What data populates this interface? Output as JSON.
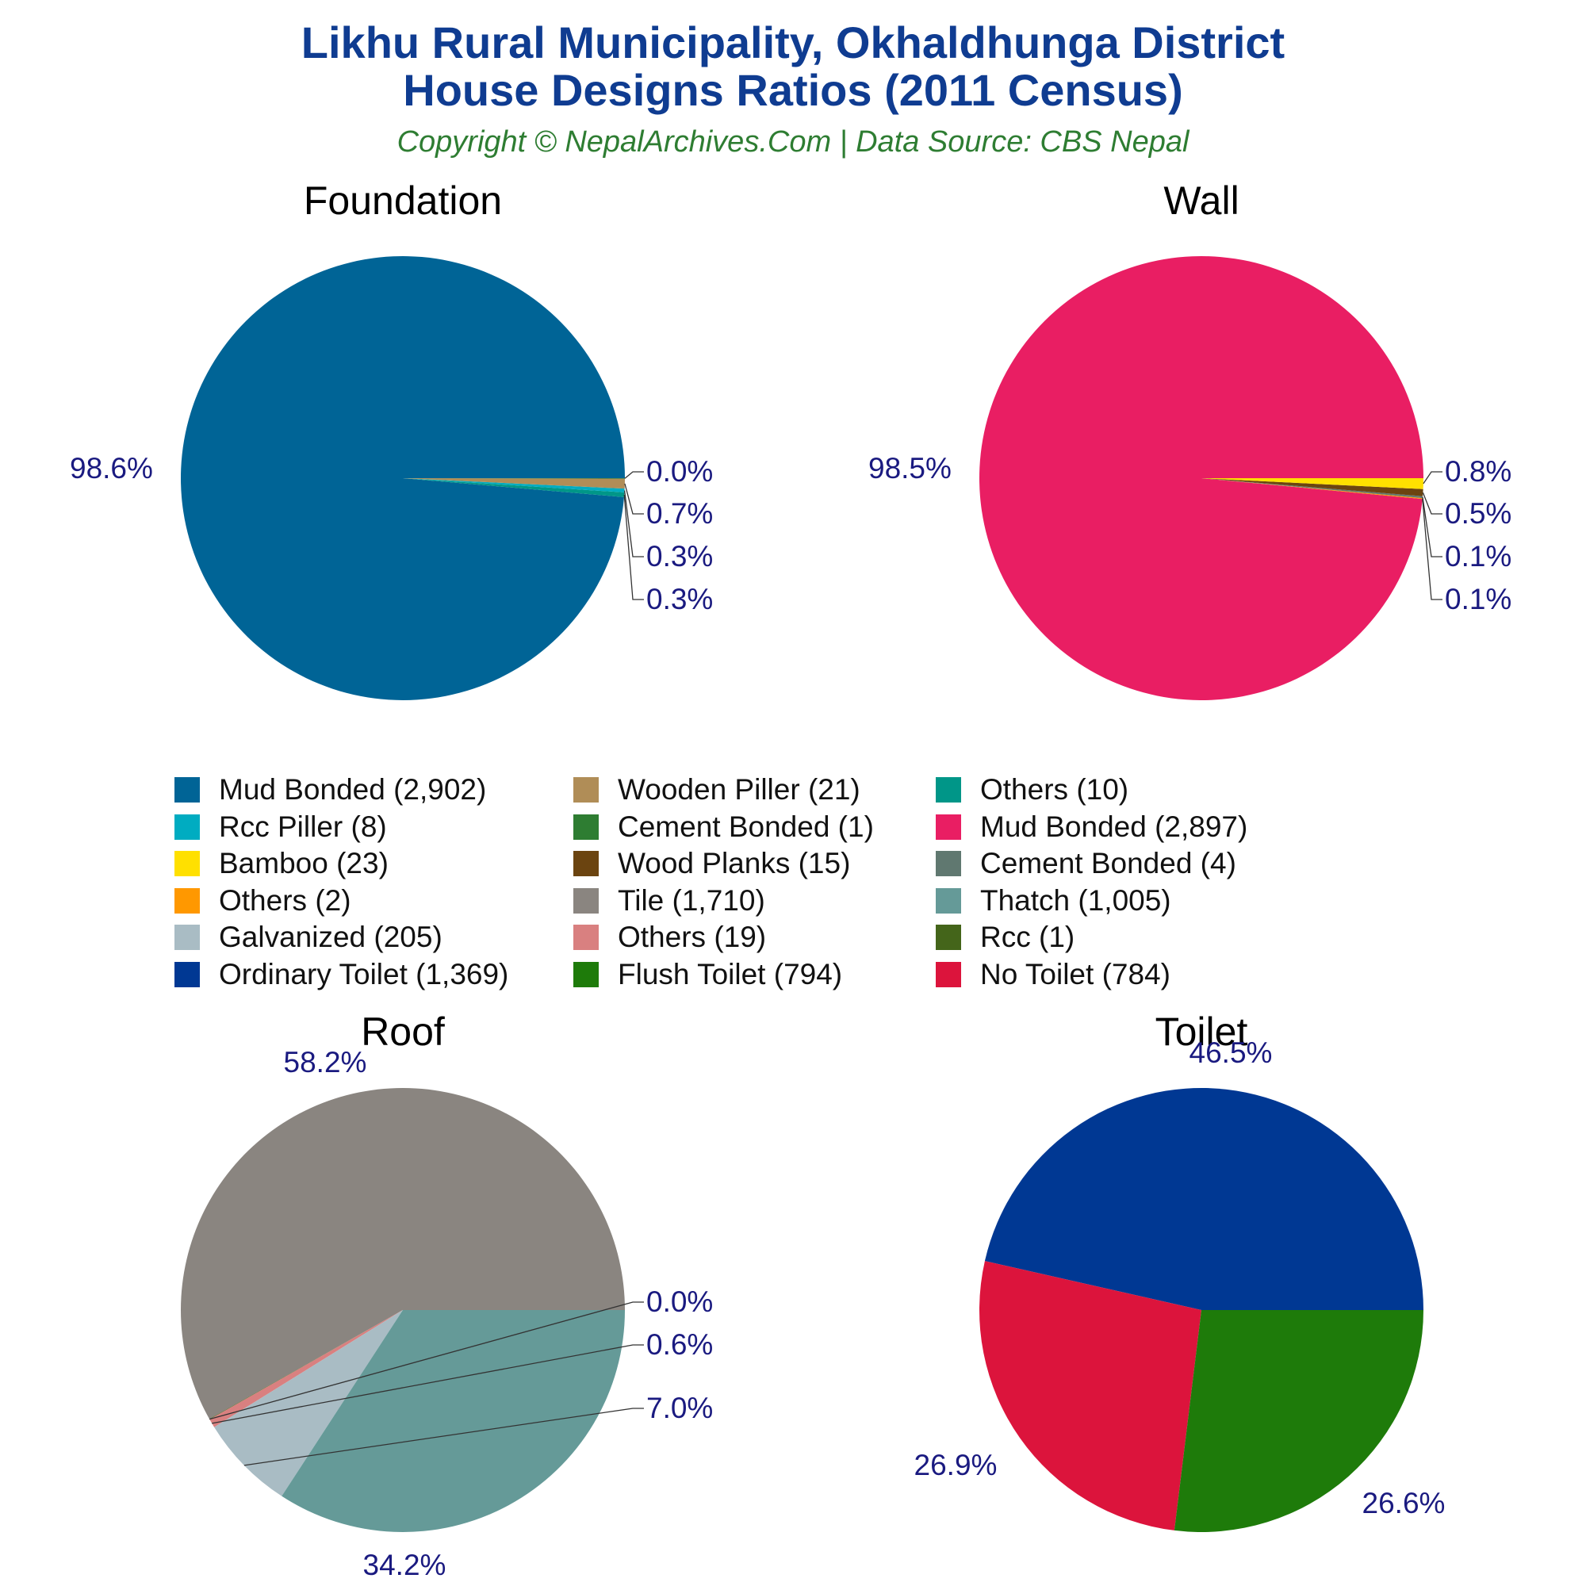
{
  "header": {
    "title_line1": "Likhu Rural Municipality, Okhaldhunga District",
    "title_line2": "House Designs Ratios (2011 Census)",
    "subtitle": "Copyright © NepalArchives.Com | Data Source: CBS Nepal"
  },
  "chart_data": [
    {
      "type": "pie",
      "title": "Foundation",
      "slices": [
        {
          "label": "Mud Bonded",
          "value": 2902,
          "pct_label": "98.6%",
          "color": "#006496"
        },
        {
          "label": "Others",
          "value": 10,
          "pct_label": "0.3%",
          "color": "#009688"
        },
        {
          "label": "Rcc Piller",
          "value": 8,
          "pct_label": "0.3%",
          "color": "#00acc1"
        },
        {
          "label": "Wooden Piller",
          "value": 21,
          "pct_label": "0.7%",
          "color": "#b08d57"
        },
        {
          "label": "Cement Bonded",
          "value": 1,
          "pct_label": "0.0%",
          "color": "#2e7d32"
        }
      ]
    },
    {
      "type": "pie",
      "title": "Wall",
      "slices": [
        {
          "label": "Mud Bonded",
          "value": 2897,
          "pct_label": "98.5%",
          "color": "#e91e63"
        },
        {
          "label": "Others",
          "value": 2,
          "pct_label": "0.1%",
          "color": "#ff9800"
        },
        {
          "label": "Cement Bonded",
          "value": 4,
          "pct_label": "0.1%",
          "color": "#607870"
        },
        {
          "label": "Wood Planks",
          "value": 15,
          "pct_label": "0.5%",
          "color": "#6b4410"
        },
        {
          "label": "Bamboo",
          "value": 23,
          "pct_label": "0.8%",
          "color": "#ffe000"
        }
      ]
    },
    {
      "type": "pie",
      "title": "Roof",
      "slices": [
        {
          "label": "Tile",
          "value": 1710,
          "pct_label": "58.2%",
          "color": "#8a8580"
        },
        {
          "label": "Rcc",
          "value": 1,
          "pct_label": "0.0%",
          "color": "#44651a"
        },
        {
          "label": "Others",
          "value": 19,
          "pct_label": "0.6%",
          "color": "#d98080"
        },
        {
          "label": "Galvanized",
          "value": 205,
          "pct_label": "7.0%",
          "color": "#a9bcc4"
        },
        {
          "label": "Thatch",
          "value": 1005,
          "pct_label": "34.2%",
          "color": "#659a98"
        }
      ]
    },
    {
      "type": "pie",
      "title": "Toilet",
      "slices": [
        {
          "label": "Ordinary Toilet",
          "value": 1369,
          "pct_label": "46.5%",
          "color": "#003893"
        },
        {
          "label": "No Toilet",
          "value": 784,
          "pct_label": "26.6%",
          "color": "#dc143c"
        },
        {
          "label": "Flush Toilet",
          "value": 794,
          "pct_label": "26.9%",
          "color": "#1e7b0a"
        }
      ]
    }
  ],
  "legend": [
    {
      "label": "Mud Bonded (2,902)",
      "color": "#006496"
    },
    {
      "label": "Rcc Piller (8)",
      "color": "#00acc1"
    },
    {
      "label": "Bamboo (23)",
      "color": "#ffe000"
    },
    {
      "label": "Others (2)",
      "color": "#ff9800"
    },
    {
      "label": "Galvanized (205)",
      "color": "#a9bcc4"
    },
    {
      "label": "Ordinary Toilet (1,369)",
      "color": "#003893"
    },
    {
      "label": "Wooden Piller (21)",
      "color": "#b08d57"
    },
    {
      "label": "Cement Bonded (1)",
      "color": "#2e7d32"
    },
    {
      "label": "Wood Planks (15)",
      "color": "#6b4410"
    },
    {
      "label": "Tile (1,710)",
      "color": "#8a8580"
    },
    {
      "label": "Others (19)",
      "color": "#d98080"
    },
    {
      "label": "Flush Toilet (794)",
      "color": "#1e7b0a"
    },
    {
      "label": "Others (10)",
      "color": "#009688"
    },
    {
      "label": "Mud Bonded (2,897)",
      "color": "#e91e63"
    },
    {
      "label": "Cement Bonded (4)",
      "color": "#607870"
    },
    {
      "label": "Thatch (1,005)",
      "color": "#659a98"
    },
    {
      "label": "Rcc (1)",
      "color": "#44651a"
    },
    {
      "label": "No Toilet (784)",
      "color": "#dc143c"
    }
  ],
  "colors": {
    "label_text": "#1a1a80",
    "title_text": "#0f3c91",
    "subtitle_text": "#2e7d32"
  }
}
